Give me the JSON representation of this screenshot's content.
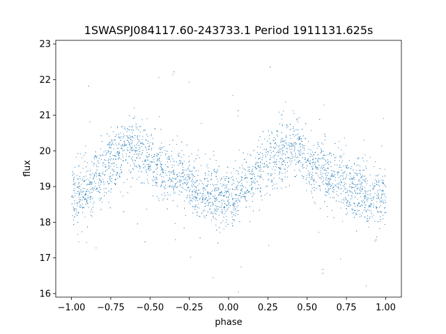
{
  "chart_data": {
    "type": "scatter",
    "title": "1SWASPJ084117.60-243733.1 Period 1911131.625s",
    "xlabel": "phase",
    "ylabel": "flux",
    "xlim": [
      -1.1,
      1.1
    ],
    "ylim": [
      15.9,
      23.1
    ],
    "xticks": [
      -1.0,
      -0.75,
      -0.5,
      -0.25,
      0.0,
      0.25,
      0.5,
      0.75,
      1.0
    ],
    "xtick_labels": [
      "−1.00",
      "−0.75",
      "−0.50",
      "−0.25",
      "0.00",
      "0.25",
      "0.50",
      "0.75",
      "1.00"
    ],
    "yticks": [
      16,
      17,
      18,
      19,
      20,
      21,
      22,
      23
    ],
    "ytick_labels": [
      "16",
      "17",
      "18",
      "19",
      "20",
      "21",
      "22",
      "23"
    ],
    "marker_color": "#1f77b4",
    "grid": false,
    "phase_profile": {
      "phase": [
        0.0,
        0.05,
        0.1,
        0.15,
        0.2,
        0.25,
        0.3,
        0.35,
        0.4,
        0.45,
        0.5,
        0.55,
        0.6,
        0.65,
        0.7,
        0.75,
        0.8,
        0.85,
        0.9,
        0.95,
        1.0
      ],
      "flux": [
        18.7,
        18.75,
        18.95,
        19.2,
        19.5,
        19.7,
        19.9,
        20.1,
        20.15,
        20.0,
        19.7,
        19.5,
        19.4,
        19.3,
        19.2,
        19.0,
        18.9,
        18.8,
        18.75,
        18.7,
        18.7
      ]
    }
  }
}
